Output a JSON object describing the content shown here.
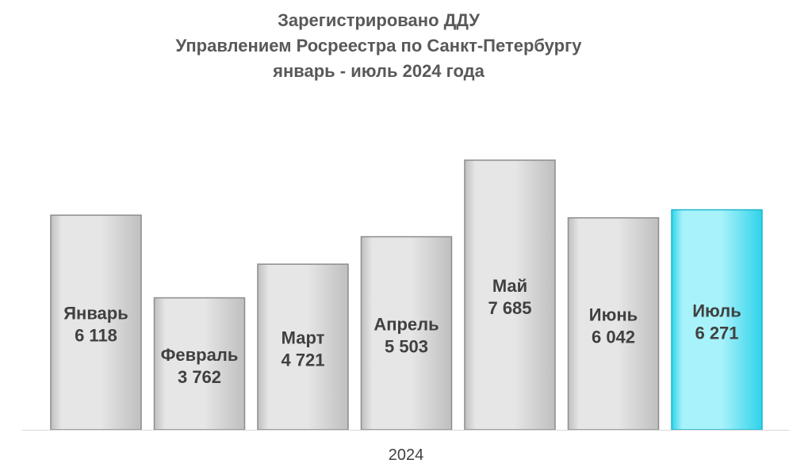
{
  "chart_data": {
    "type": "bar",
    "title_lines": [
      "Зарегистрировано ДДУ",
      "Управлением Росреестра по Санкт-Петербургу",
      "январь - июль 2024 года"
    ],
    "categories": [
      "Январь",
      "Февраль",
      "Март",
      "Апрель",
      "Май",
      "Июнь",
      "Июль"
    ],
    "values": [
      6118,
      3762,
      4721,
      5503,
      7685,
      6042,
      6271
    ],
    "value_labels": [
      "6 118",
      "3 762",
      "4 721",
      "5 503",
      "7 685",
      "6 042",
      "6 271"
    ],
    "xlabel": "2024",
    "ylabel": "",
    "ylim": [
      0,
      7685
    ],
    "grid": false,
    "legend": "none",
    "highlight_index": 6,
    "colors": {
      "bar_fill_light": "#e6e6e6",
      "bar_fill_dark": "#bfbfbf",
      "bar_stroke": "#8c8c8c",
      "highlight_fill_light": "#a8f2fb",
      "highlight_fill_dark": "#2fd3ea",
      "highlight_stroke": "#1fb6cc",
      "axis_line": "#d9d9d9",
      "text": "#404040",
      "title": "#595959"
    }
  }
}
